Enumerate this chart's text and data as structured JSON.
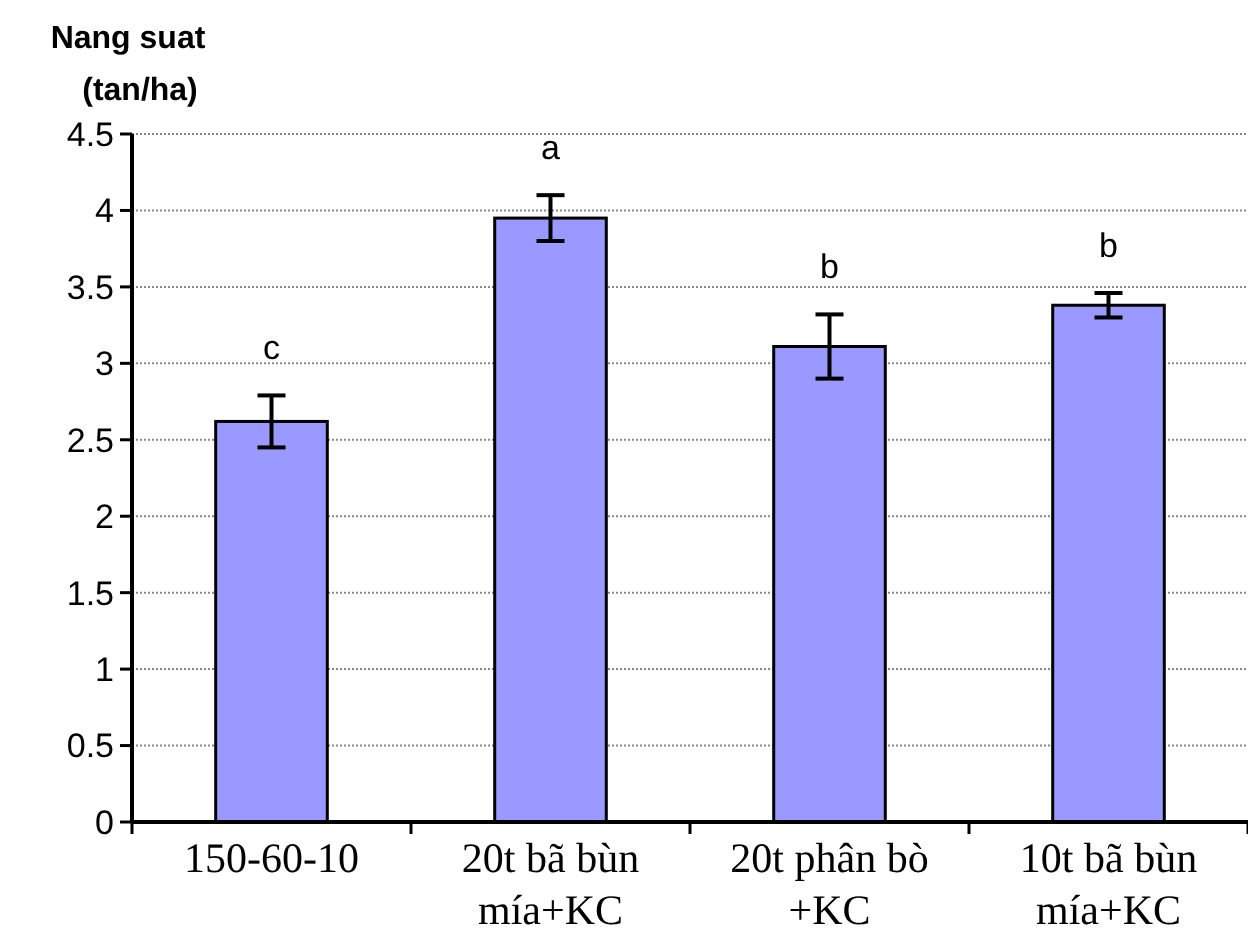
{
  "chart_data": {
    "type": "bar",
    "ylabel": "Nang suat (tan/ha)",
    "categories": [
      "150-60-10",
      "20t bã bùn mía+KC",
      "20t phân bò +KC",
      "10t bã bùn mía+KC"
    ],
    "values": [
      2.62,
      3.95,
      3.11,
      3.38
    ],
    "errors": [
      0.17,
      0.15,
      0.21,
      0.08
    ],
    "color": "#9999ff",
    "ylim": [
      0,
      4.5
    ],
    "yticks": [
      0,
      0.5,
      1,
      1.5,
      2,
      2.5,
      3,
      3.5,
      4,
      4.5
    ],
    "grid": "y",
    "annotations": [
      "c",
      "a",
      "b",
      "b"
    ]
  }
}
